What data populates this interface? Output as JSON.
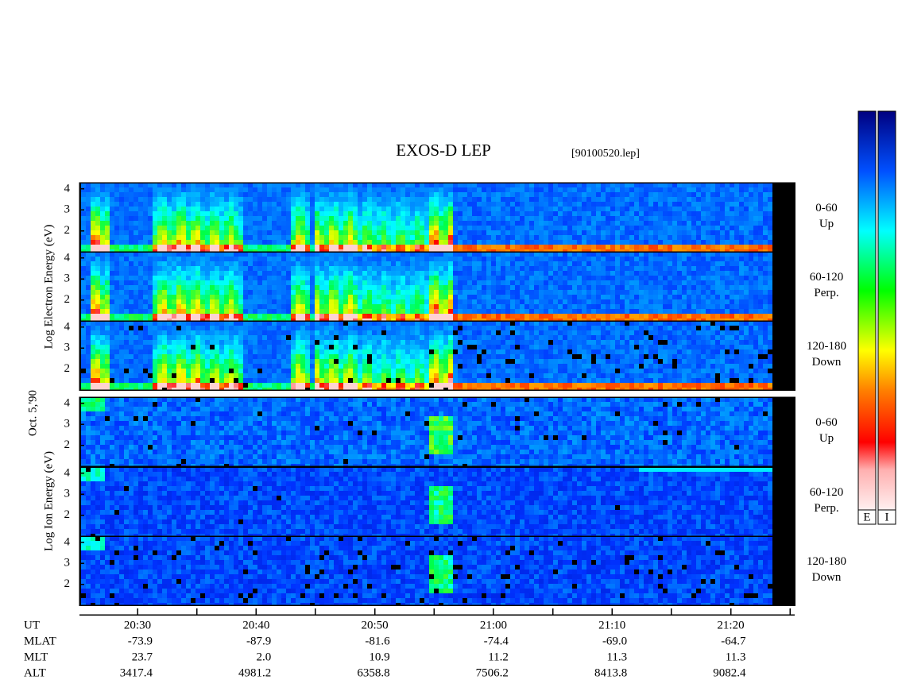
{
  "title": "EXOS-D LEP",
  "file": "[90100520.lep]",
  "date": "Oct. 5,'90",
  "electron": {
    "ylabel": "Log  Electron  Energy (eV)",
    "channels": [
      [
        "0-60",
        "Up"
      ],
      [
        "60-120",
        "Perp."
      ],
      [
        "120-180",
        "Down"
      ]
    ]
  },
  "ion": {
    "ylabel": "Log  Ion  Energy (eV)",
    "channels": [
      [
        "0-60",
        "Up"
      ],
      [
        "60-120",
        "Perp."
      ],
      [
        "120-180",
        "Down"
      ]
    ]
  },
  "ylim": [
    1,
    4.3
  ],
  "yticks": [
    2,
    3,
    4
  ],
  "ephemeris": [
    {
      "label": "UT",
      "values": [
        "20:30",
        "20:40",
        "20:50",
        "21:00",
        "21:10",
        "21:20"
      ]
    },
    {
      "label": "MLAT",
      "values": [
        "-73.9",
        "-87.9",
        "-81.6",
        "-74.4",
        "-69.0",
        "-64.7"
      ]
    },
    {
      "label": "MLT",
      "values": [
        "23.7",
        "2.0",
        "10.9",
        "11.2",
        "11.3",
        "11.3"
      ]
    },
    {
      "label": "ALT",
      "values": [
        "3417.4",
        "4981.2",
        "6358.8",
        "7506.2",
        "8413.8",
        "9082.4"
      ]
    }
  ],
  "colorbars": [
    "E",
    "I"
  ]
}
